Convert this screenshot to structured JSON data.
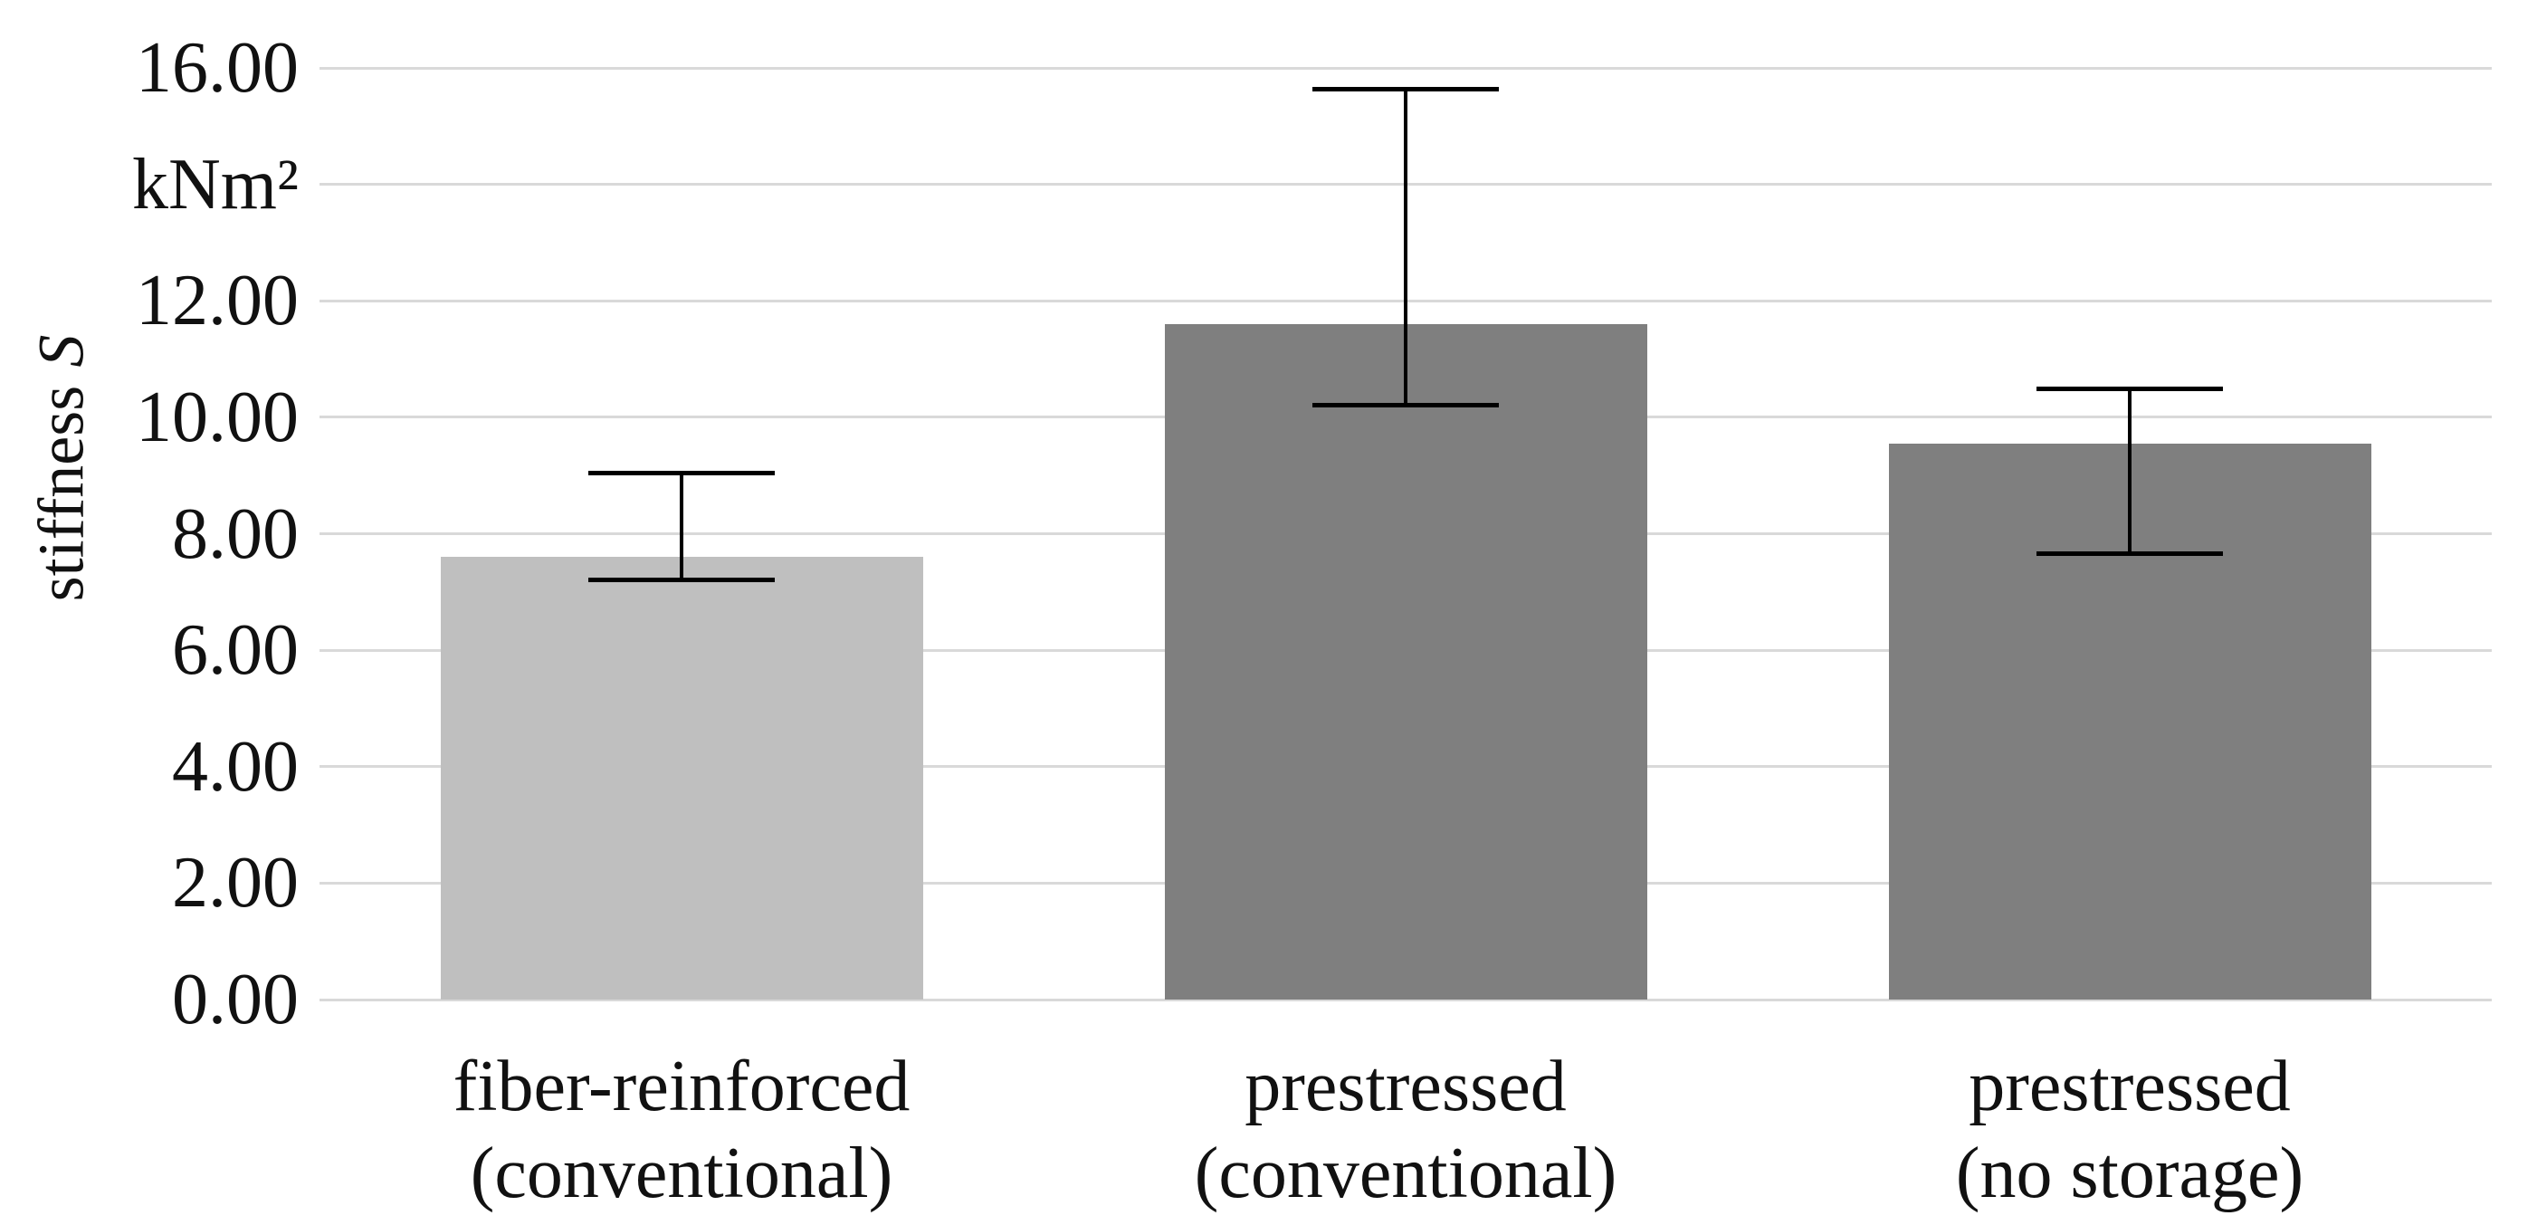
{
  "chart_data": {
    "type": "bar",
    "title": "",
    "ylabel_main": "stiffness",
    "ylabel_symbol": "S",
    "y_unit": "kNm²",
    "categories": [
      [
        "fiber-reinforced",
        "(conventional)"
      ],
      [
        "prestressed",
        "(conventional)"
      ],
      [
        "prestressed",
        "(no storage)"
      ]
    ],
    "values": [
      7.6,
      11.6,
      9.55
    ],
    "error_whisker_top": [
      9.05,
      15.65,
      10.5
    ],
    "error_whisker_bottom": [
      7.2,
      10.2,
      7.65
    ],
    "ylim": [
      0,
      16
    ],
    "ytick_step": 2,
    "yticks": [
      {
        "value": 16,
        "label": "16.00"
      },
      {
        "value": 14,
        "label": "kNm²"
      },
      {
        "value": 12,
        "label": "12.00"
      },
      {
        "value": 10,
        "label": "10.00"
      },
      {
        "value": 8,
        "label": "8.00"
      },
      {
        "value": 6,
        "label": "6.00"
      },
      {
        "value": 4,
        "label": "4.00"
      },
      {
        "value": 2,
        "label": "2.00"
      },
      {
        "value": 0,
        "label": "0.00"
      }
    ],
    "grid": true,
    "legend": null,
    "colors": {
      "bar_fills": [
        "#bfbfbf",
        "#7f7f7f",
        "#7f7f7f"
      ],
      "gridline": "#d9d9d9",
      "error_bar": "#000000",
      "text": "#111111",
      "background": "#ffffff"
    }
  }
}
